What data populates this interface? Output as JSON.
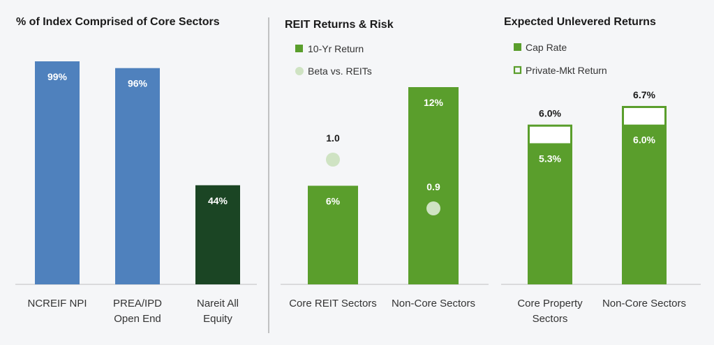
{
  "colors": {
    "blue": "#4f81bd",
    "dark_green": "#1b4524",
    "green": "#5a9e2c",
    "light_green": "#cfe3c3",
    "background": "#f5f6f8"
  },
  "chart_data": [
    {
      "type": "bar",
      "title": "% of Index Comprised of Core Sectors",
      "categories": [
        [
          "NCREIF NPI"
        ],
        [
          "PREA/IPD",
          "Open End"
        ],
        [
          "Nareit All",
          "Equity"
        ]
      ],
      "values": [
        99,
        96,
        44
      ],
      "value_labels": [
        "99%",
        "96%",
        "44%"
      ],
      "bar_colors": [
        "#4f81bd",
        "#4f81bd",
        "#1b4524"
      ],
      "ylim": [
        0,
        100
      ],
      "grid": false
    },
    {
      "type": "bar",
      "title": "REIT Returns & Risk",
      "categories": [
        [
          "Core REIT Sectors"
        ],
        [
          "Non-Core Sectors"
        ]
      ],
      "series": [
        {
          "name": "10-Yr Return",
          "kind": "bar",
          "color": "#5a9e2c",
          "values": [
            6,
            12
          ],
          "value_labels": [
            "6%",
            "12%"
          ]
        },
        {
          "name": "Beta vs. REITs",
          "kind": "point",
          "color": "#cfe3c3",
          "values": [
            1.0,
            0.9
          ],
          "value_labels": [
            "1.0",
            "0.9"
          ]
        }
      ],
      "legend": "top-left",
      "grid": false
    },
    {
      "type": "bar",
      "title": "Expected Unlevered Returns",
      "categories": [
        [
          "Core Property",
          "Sectors"
        ],
        [
          "Non-Core Sectors"
        ]
      ],
      "series": [
        {
          "name": "Cap Rate",
          "kind": "bar",
          "color": "#5a9e2c",
          "values": [
            5.3,
            6.0
          ],
          "value_labels": [
            "5.3%",
            "6.0%"
          ]
        },
        {
          "name": "Private-Mkt Return",
          "kind": "outline",
          "color": "#5a9e2c",
          "values": [
            6.0,
            6.7
          ],
          "value_labels": [
            "6.0%",
            "6.7%"
          ]
        }
      ],
      "legend": "top-left",
      "grid": false
    }
  ]
}
